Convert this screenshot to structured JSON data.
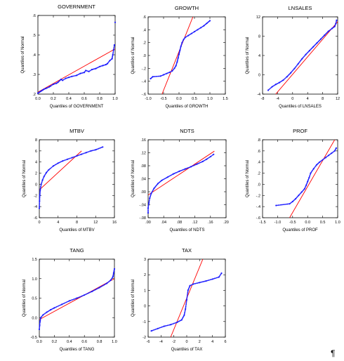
{
  "figure": {
    "trailing_mark": "¶",
    "colors": {
      "points": "#1a1aff",
      "reference_line": "#ff0000",
      "frame": "#000000",
      "text": "#000000"
    }
  },
  "chart_data": [
    {
      "type": "scatter",
      "title": "GOVERNMENT",
      "xlabel": "Quantiles of GOVERNMENT",
      "ylabel": "Quantiles of Normal",
      "xlim": [
        0.0,
        1.0
      ],
      "ylim": [
        0.2,
        0.6
      ],
      "xticks": [
        0.0,
        0.2,
        0.4,
        0.6,
        0.8,
        1.0
      ],
      "xtick_labels": [
        "0.0",
        "0.2",
        "0.4",
        "0.6",
        "0.8",
        "1.0"
      ],
      "yticks": [
        0.2,
        0.3,
        0.4,
        0.5,
        0.6
      ],
      "ytick_labels": [
        ".2",
        ".3",
        ".4",
        ".5",
        ".6"
      ],
      "reference_line": [
        [
          0.0,
          0.21
        ],
        [
          1.0,
          0.43
        ]
      ],
      "points": [
        [
          0.0,
          0.205
        ],
        [
          0.02,
          0.21
        ],
        [
          0.04,
          0.215
        ],
        [
          0.06,
          0.22
        ],
        [
          0.08,
          0.225
        ],
        [
          0.1,
          0.228
        ],
        [
          0.12,
          0.232
        ],
        [
          0.14,
          0.235
        ],
        [
          0.16,
          0.24
        ],
        [
          0.2,
          0.25
        ],
        [
          0.24,
          0.255
        ],
        [
          0.26,
          0.26
        ],
        [
          0.3,
          0.275
        ],
        [
          0.32,
          0.27
        ],
        [
          0.36,
          0.28
        ],
        [
          0.4,
          0.285
        ],
        [
          0.44,
          0.29
        ],
        [
          0.5,
          0.295
        ],
        [
          0.55,
          0.305
        ],
        [
          0.6,
          0.31
        ],
        [
          0.62,
          0.32
        ],
        [
          0.66,
          0.315
        ],
        [
          0.7,
          0.325
        ],
        [
          0.75,
          0.33
        ],
        [
          0.8,
          0.34
        ],
        [
          0.84,
          0.345
        ],
        [
          0.88,
          0.35
        ],
        [
          0.9,
          0.355
        ],
        [
          0.93,
          0.37
        ],
        [
          0.96,
          0.38
        ],
        [
          0.97,
          0.4
        ],
        [
          0.98,
          0.425
        ],
        [
          0.99,
          0.45
        ],
        [
          1.0,
          0.565
        ]
      ]
    },
    {
      "type": "scatter",
      "title": "GROWTH",
      "xlabel": "Quantiles of GROWTH",
      "ylabel": "Quantiles of Normal",
      "xlim": [
        -1.0,
        1.5
      ],
      "ylim": [
        -0.6,
        0.6
      ],
      "xticks": [
        -1.0,
        -0.5,
        0.0,
        0.5,
        1.0,
        1.5
      ],
      "xtick_labels": [
        "-1.0",
        "-0.5",
        "0.0",
        "0.5",
        "1.0",
        "1.5"
      ],
      "yticks": [
        -0.6,
        -0.4,
        -0.2,
        0.0,
        0.2,
        0.4,
        0.6
      ],
      "ytick_labels": [
        "-.6",
        "-.4",
        "-.2",
        ".0",
        ".2",
        ".4",
        ".6"
      ],
      "reference_line": [
        [
          -0.55,
          -0.6
        ],
        [
          0.45,
          0.6
        ]
      ],
      "points": [
        [
          -0.92,
          -0.36
        ],
        [
          -0.85,
          -0.33
        ],
        [
          -0.6,
          -0.32
        ],
        [
          -0.5,
          -0.3
        ],
        [
          -0.4,
          -0.28
        ],
        [
          -0.3,
          -0.26
        ],
        [
          -0.22,
          -0.24
        ],
        [
          -0.15,
          -0.2
        ],
        [
          -0.1,
          -0.16
        ],
        [
          -0.06,
          -0.1
        ],
        [
          -0.03,
          -0.04
        ],
        [
          0.0,
          0.02
        ],
        [
          0.03,
          0.08
        ],
        [
          0.06,
          0.14
        ],
        [
          0.1,
          0.2
        ],
        [
          0.15,
          0.25
        ],
        [
          0.2,
          0.28
        ],
        [
          0.3,
          0.31
        ],
        [
          0.4,
          0.34
        ],
        [
          0.5,
          0.37
        ],
        [
          0.6,
          0.4
        ],
        [
          0.7,
          0.43
        ],
        [
          0.8,
          0.46
        ],
        [
          0.9,
          0.5
        ],
        [
          1.0,
          0.54
        ]
      ]
    },
    {
      "type": "scatter",
      "title": "LNSALES",
      "xlabel": "Quantiles of LNSALES",
      "ylabel": "Quantiles of Normal",
      "xlim": [
        -8,
        12
      ],
      "ylim": [
        -4,
        12
      ],
      "xticks": [
        -8,
        -4,
        0,
        4,
        8,
        12
      ],
      "xtick_labels": [
        "-8",
        "-4",
        "0",
        "4",
        "8",
        "12"
      ],
      "yticks": [
        -4,
        0,
        4,
        8,
        12
      ],
      "ytick_labels": [
        "-4",
        "0",
        "4",
        "8",
        "12"
      ],
      "reference_line": [
        [
          -4.5,
          -4.0
        ],
        [
          12.0,
          11.0
        ]
      ],
      "points": [
        [
          -6.5,
          -3.2
        ],
        [
          -5.5,
          -2.5
        ],
        [
          -4.5,
          -2.0
        ],
        [
          -3.5,
          -1.6
        ],
        [
          -2.5,
          -1.1
        ],
        [
          -1.5,
          -0.4
        ],
        [
          -0.5,
          0.4
        ],
        [
          0.5,
          1.3
        ],
        [
          1.5,
          2.3
        ],
        [
          2.5,
          3.3
        ],
        [
          3.5,
          4.2
        ],
        [
          4.5,
          5.0
        ],
        [
          5.5,
          5.8
        ],
        [
          6.5,
          6.6
        ],
        [
          7.5,
          7.4
        ],
        [
          8.5,
          8.2
        ],
        [
          9.5,
          9.0
        ],
        [
          10.5,
          9.6
        ],
        [
          11.2,
          10.0
        ],
        [
          11.5,
          10.6
        ],
        [
          11.7,
          11.3
        ]
      ]
    },
    {
      "type": "scatter",
      "title": "MTBV",
      "xlabel": "Quantiles of MTBV",
      "ylabel": "Quantiles of Normal",
      "xlim": [
        0,
        16
      ],
      "ylim": [
        -6,
        8
      ],
      "xticks": [
        0,
        4,
        8,
        12,
        16
      ],
      "xtick_labels": [
        "0",
        "4",
        "8",
        "12",
        "16"
      ],
      "yticks": [
        -6,
        -4,
        -2,
        0,
        2,
        4,
        6,
        8
      ],
      "ytick_labels": [
        "-6",
        "-4",
        "-2",
        "0",
        "2",
        "4",
        "6",
        "8"
      ],
      "reference_line": [
        [
          0.0,
          -1.0
        ],
        [
          9.0,
          6.0
        ]
      ],
      "points": [
        [
          0.0,
          -4.3
        ],
        [
          0.05,
          -3.0
        ],
        [
          0.1,
          -2.0
        ],
        [
          0.2,
          -1.0
        ],
        [
          0.4,
          0.0
        ],
        [
          0.7,
          0.8
        ],
        [
          1.0,
          1.4
        ],
        [
          1.5,
          2.1
        ],
        [
          2.0,
          2.6
        ],
        [
          3.0,
          3.3
        ],
        [
          4.0,
          3.8
        ],
        [
          5.0,
          4.2
        ],
        [
          6.0,
          4.5
        ],
        [
          7.0,
          4.8
        ],
        [
          8.0,
          5.1
        ],
        [
          9.0,
          5.4
        ],
        [
          10.0,
          5.7
        ],
        [
          11.0,
          6.0
        ],
        [
          12.0,
          6.2
        ],
        [
          13.5,
          6.7
        ]
      ]
    },
    {
      "type": "scatter",
      "title": "NDTS",
      "xlabel": "Quantiles of NDTS",
      "ylabel": "Quantiles of Normal",
      "xlim": [
        0.0,
        0.2
      ],
      "ylim": [
        -0.08,
        0.16
      ],
      "xticks": [
        0.0,
        0.04,
        0.08,
        0.12,
        0.16,
        0.2
      ],
      "xtick_labels": [
        ".00",
        ".04",
        ".08",
        ".12",
        ".16",
        ".20"
      ],
      "yticks": [
        -0.08,
        -0.04,
        0.0,
        0.04,
        0.08,
        0.12,
        0.16
      ],
      "ytick_labels": [
        "-.08",
        "-.04",
        ".00",
        ".04",
        ".08",
        ".12",
        ".16"
      ],
      "reference_line": [
        [
          0.0,
          -0.01
        ],
        [
          0.17,
          0.125
        ]
      ],
      "points": [
        [
          0.0,
          -0.065
        ],
        [
          0.0,
          -0.05
        ],
        [
          0.002,
          -0.035
        ],
        [
          0.004,
          -0.02
        ],
        [
          0.008,
          -0.005
        ],
        [
          0.015,
          0.01
        ],
        [
          0.025,
          0.025
        ],
        [
          0.035,
          0.035
        ],
        [
          0.05,
          0.045
        ],
        [
          0.065,
          0.055
        ],
        [
          0.08,
          0.063
        ],
        [
          0.095,
          0.07
        ],
        [
          0.11,
          0.077
        ],
        [
          0.125,
          0.085
        ],
        [
          0.14,
          0.093
        ],
        [
          0.15,
          0.1
        ],
        [
          0.16,
          0.108
        ],
        [
          0.168,
          0.115
        ]
      ]
    },
    {
      "type": "scatter",
      "title": "PROF",
      "xlabel": "Quantiles of PROF",
      "ylabel": "Quantiles of Normal",
      "xlim": [
        -1.5,
        1.0
      ],
      "ylim": [
        -0.6,
        0.8
      ],
      "xticks": [
        -1.5,
        -1.0,
        -0.5,
        0.0,
        0.5,
        1.0
      ],
      "xtick_labels": [
        "-1.5",
        "-1.0",
        "-0.5",
        "0.0",
        "0.5",
        "1.0"
      ],
      "yticks": [
        -0.6,
        -0.4,
        -0.2,
        0.0,
        0.2,
        0.4,
        0.6,
        0.8
      ],
      "ytick_labels": [
        "-.6",
        "-.4",
        "-.2",
        ".0",
        ".2",
        ".4",
        ".6",
        ".8"
      ],
      "reference_line": [
        [
          -0.6,
          -0.6
        ],
        [
          0.9,
          0.8
        ]
      ],
      "points": [
        [
          -1.05,
          -0.38
        ],
        [
          -0.6,
          -0.35
        ],
        [
          -0.5,
          -0.31
        ],
        [
          -0.4,
          -0.26
        ],
        [
          -0.3,
          -0.2
        ],
        [
          -0.2,
          -0.14
        ],
        [
          -0.1,
          -0.08
        ],
        [
          -0.05,
          -0.02
        ],
        [
          0.0,
          0.05
        ],
        [
          0.05,
          0.12
        ],
        [
          0.1,
          0.2
        ],
        [
          0.2,
          0.28
        ],
        [
          0.3,
          0.35
        ],
        [
          0.4,
          0.4
        ],
        [
          0.5,
          0.44
        ],
        [
          0.6,
          0.48
        ],
        [
          0.7,
          0.52
        ],
        [
          0.8,
          0.56
        ],
        [
          0.9,
          0.6
        ],
        [
          0.95,
          0.65
        ]
      ]
    },
    {
      "type": "scatter",
      "title": "TANG",
      "xlabel": "Quantiles of TANG",
      "ylabel": "Quantiles of Normal",
      "xlim": [
        0.0,
        1.0
      ],
      "ylim": [
        -0.5,
        1.5
      ],
      "xticks": [
        0.0,
        0.2,
        0.4,
        0.6,
        0.8,
        1.0
      ],
      "xtick_labels": [
        "0.0",
        "0.2",
        "0.4",
        "0.6",
        "0.8",
        "1.0"
      ],
      "yticks": [
        -0.5,
        0.0,
        0.5,
        1.0,
        1.5
      ],
      "ytick_labels": [
        "-0.5",
        "0.0",
        "0.5",
        "1.0",
        "1.5"
      ],
      "reference_line": [
        [
          0.0,
          -0.05
        ],
        [
          1.0,
          1.0
        ]
      ],
      "points": [
        [
          0.0,
          -0.3
        ],
        [
          0.005,
          -0.2
        ],
        [
          0.01,
          -0.1
        ],
        [
          0.02,
          0.0
        ],
        [
          0.05,
          0.07
        ],
        [
          0.1,
          0.14
        ],
        [
          0.15,
          0.2
        ],
        [
          0.2,
          0.25
        ],
        [
          0.3,
          0.34
        ],
        [
          0.4,
          0.43
        ],
        [
          0.5,
          0.5
        ],
        [
          0.6,
          0.58
        ],
        [
          0.7,
          0.67
        ],
        [
          0.8,
          0.77
        ],
        [
          0.9,
          0.88
        ],
        [
          0.95,
          0.96
        ],
        [
          0.98,
          1.05
        ],
        [
          0.99,
          1.15
        ],
        [
          1.0,
          1.25
        ]
      ]
    },
    {
      "type": "scatter",
      "title": "TAX",
      "xlabel": "Quantiles of TAX",
      "ylabel": "Quantiles of Normal",
      "xlim": [
        -6,
        6
      ],
      "ylim": [
        -2,
        3
      ],
      "xticks": [
        -6,
        -4,
        -2,
        0,
        2,
        4,
        6
      ],
      "xtick_labels": [
        "-6",
        "-4",
        "-2",
        "0",
        "2",
        "4",
        "6"
      ],
      "yticks": [
        -2,
        -1,
        0,
        1,
        2,
        3
      ],
      "ytick_labels": [
        "-2",
        "-1",
        "0",
        "1",
        "2",
        "3"
      ],
      "reference_line": [
        [
          -2.5,
          -2.0
        ],
        [
          2.5,
          3.0
        ]
      ],
      "points": [
        [
          -5.5,
          -1.6
        ],
        [
          -4.5,
          -1.45
        ],
        [
          -3.5,
          -1.3
        ],
        [
          -2.5,
          -1.2
        ],
        [
          -1.5,
          -1.05
        ],
        [
          -0.8,
          -0.9
        ],
        [
          -0.4,
          -0.6
        ],
        [
          -0.2,
          -0.2
        ],
        [
          0.0,
          0.4
        ],
        [
          0.2,
          1.0
        ],
        [
          0.5,
          1.3
        ],
        [
          1.0,
          1.4
        ],
        [
          2.0,
          1.5
        ],
        [
          3.0,
          1.6
        ],
        [
          4.0,
          1.72
        ],
        [
          5.0,
          1.85
        ],
        [
          5.4,
          2.1
        ]
      ]
    }
  ]
}
